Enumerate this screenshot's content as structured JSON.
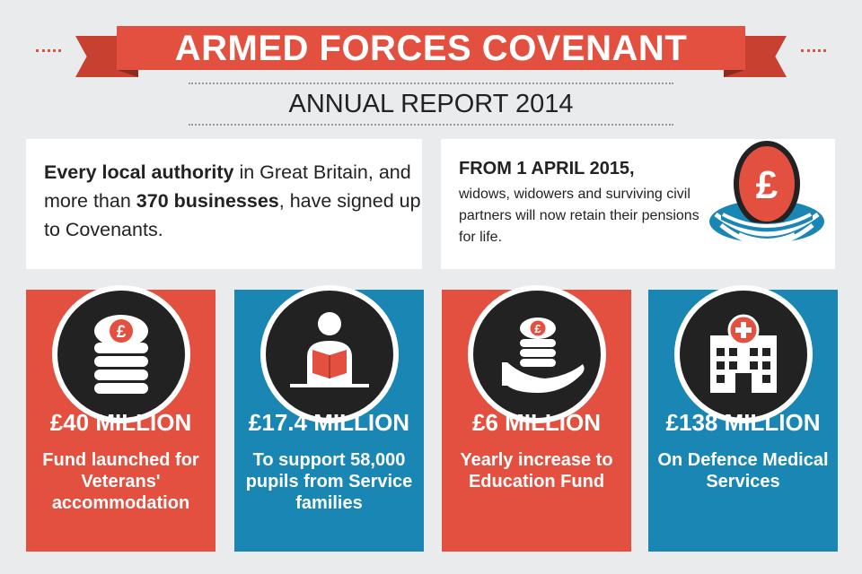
{
  "header": {
    "title": "ARMED FORCES COVENANT",
    "subtitle": "ANNUAL REPORT 2014"
  },
  "info_left": {
    "bold1": "Every local authority",
    "text1": " in Great Britain, and more than ",
    "bold2": "370 businesses",
    "text2": ", have signed up to Covenants."
  },
  "info_right": {
    "title": "FROM 1 APRIL 2015,",
    "text": "widows, widowers and surviving civil partners will now retain their pensions for life.",
    "icon": "pound-egg-nest-icon",
    "symbol": "£"
  },
  "cards": [
    {
      "amount": "£40 MILLION",
      "desc": "Fund launched for Veterans' accommodation",
      "color": "#e4503f",
      "icon": "pound-coin-stack-icon",
      "symbol": "£"
    },
    {
      "amount": "£17.4 MILLION",
      "desc": "To support 58,000 pupils from Service families",
      "color": "#1a86b3",
      "icon": "reading-student-icon"
    },
    {
      "amount": "£6 MILLION",
      "desc": "Yearly increase to Education Fund",
      "color": "#e4503f",
      "icon": "hand-holding-coins-icon",
      "symbol": "£"
    },
    {
      "amount": "£138 MILLION",
      "desc": "On Defence Medical Services",
      "color": "#1a86b3",
      "icon": "hospital-building-icon"
    }
  ],
  "colors": {
    "red": "#e4503f",
    "blue": "#1a86b3",
    "dark": "#222222"
  }
}
